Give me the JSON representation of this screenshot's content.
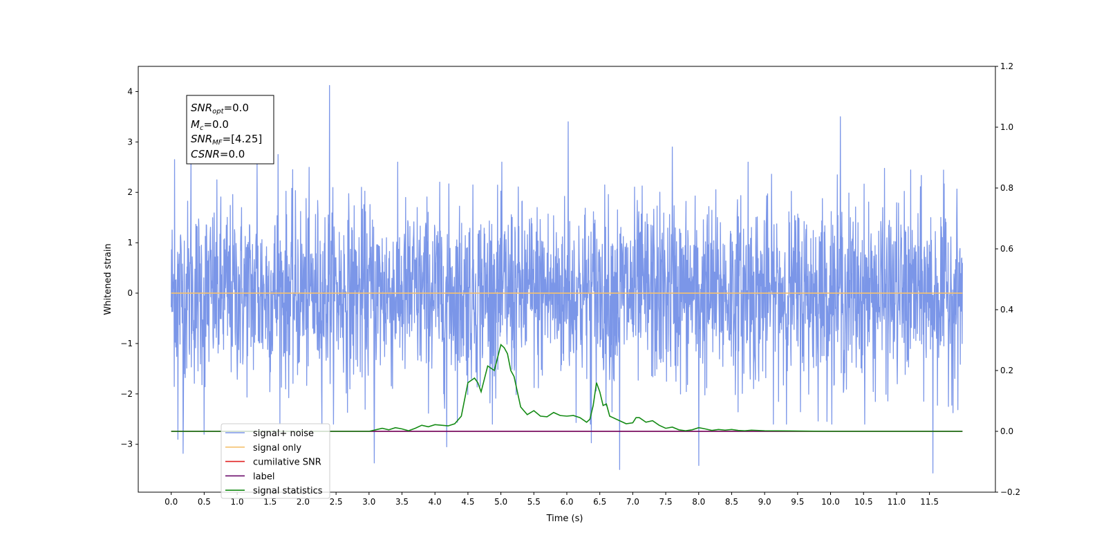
{
  "chart_data": {
    "type": "line",
    "title": "",
    "xlabel": "Time (s)",
    "ylabel_left": "Whitened strain",
    "ylabel_right": "",
    "xlim": [
      -0.5,
      12.5
    ],
    "ylim_left": [
      -3.95,
      4.5
    ],
    "ylim_right": [
      -0.2,
      1.2
    ],
    "x_ticks": [
      "0.0",
      "0.5",
      "1.0",
      "1.5",
      "2.0",
      "2.5",
      "3.0",
      "3.5",
      "4.0",
      "4.5",
      "5.0",
      "5.5",
      "6.0",
      "6.5",
      "7.0",
      "7.5",
      "8.0",
      "8.5",
      "9.0",
      "9.5",
      "10.0",
      "10.5",
      "11.0",
      "11.5"
    ],
    "y_ticks_left": [
      "4",
      "3",
      "2",
      "1",
      "0",
      "−1",
      "−2",
      "−3"
    ],
    "y_ticks_right": [
      "1.2",
      "1.0",
      "0.8",
      "0.6",
      "0.4",
      "0.2",
      "0.0",
      "−0.2"
    ],
    "grid": false,
    "legend_position": "lower-left",
    "info_box": {
      "line1": {
        "sym": "SNR",
        "sub": "opt",
        "rest": "=0.0"
      },
      "line2": {
        "sym": "M",
        "sub": "c",
        "rest": "=0.0"
      },
      "line3": {
        "sym": "SNR",
        "sub": "MF",
        "rest": "=[4.25]"
      },
      "line4": {
        "sym": "CSNR",
        "sub": "",
        "rest": "=0.0"
      }
    },
    "series": [
      {
        "name": "signal+ noise",
        "color": "#7b96e8",
        "axis": "left",
        "description_note": "dense white noise in whitened strain, amplitude roughly -2.5 to 2.5 with spikes up to 4.1 and down to -3.6",
        "x_range": [
          0.0,
          12.0
        ],
        "spikes": [
          [
            0.05,
            2.65
          ],
          [
            0.1,
            -2.9
          ],
          [
            0.18,
            -3.18
          ],
          [
            0.3,
            2.7
          ],
          [
            0.5,
            -2.8
          ],
          [
            1.3,
            2.6
          ],
          [
            1.62,
            2.75
          ],
          [
            2.4,
            4.12
          ],
          [
            3.08,
            -3.37
          ],
          [
            4.18,
            -3.05
          ],
          [
            6.02,
            3.4
          ],
          [
            6.37,
            -2.97
          ],
          [
            6.8,
            -3.5
          ],
          [
            7.6,
            2.9
          ],
          [
            8.0,
            -3.42
          ],
          [
            8.75,
            2.6
          ],
          [
            10.15,
            3.5
          ],
          [
            11.55,
            -3.57
          ]
        ]
      },
      {
        "name": "signal only",
        "color": "#f5c16e",
        "axis": "left",
        "x": [
          0.0,
          12.0
        ],
        "y": [
          0.0,
          0.0
        ]
      },
      {
        "name": "cumilative SNR",
        "color": "#e02020",
        "axis": "right",
        "x": [
          0.0,
          12.0
        ],
        "y": [
          0.0,
          0.0
        ]
      },
      {
        "name": "label",
        "color": "#6a0a6a",
        "axis": "right",
        "x": [
          0.0,
          12.0
        ],
        "y": [
          0.0,
          0.0
        ]
      },
      {
        "name": "signal statistics",
        "color": "#138a13",
        "axis": "right",
        "x": [
          0.0,
          3.0,
          3.1,
          3.2,
          3.3,
          3.4,
          3.5,
          3.6,
          3.7,
          3.8,
          3.9,
          4.0,
          4.1,
          4.2,
          4.3,
          4.4,
          4.5,
          4.6,
          4.65,
          4.7,
          4.8,
          4.9,
          5.0,
          5.05,
          5.1,
          5.15,
          5.2,
          5.3,
          5.4,
          5.5,
          5.6,
          5.7,
          5.8,
          5.9,
          6.0,
          6.1,
          6.2,
          6.3,
          6.35,
          6.4,
          6.45,
          6.5,
          6.55,
          6.6,
          6.65,
          6.7,
          6.8,
          6.9,
          7.0,
          7.05,
          7.1,
          7.2,
          7.3,
          7.4,
          7.5,
          7.6,
          7.7,
          7.8,
          7.9,
          8.0,
          8.1,
          8.2,
          8.3,
          8.4,
          8.5,
          8.6,
          8.7,
          8.8,
          9.0,
          9.5,
          10.0,
          11.0,
          12.0
        ],
        "y": [
          0.0,
          0.0,
          0.005,
          0.01,
          0.005,
          0.012,
          0.008,
          0.002,
          0.01,
          0.02,
          0.015,
          0.022,
          0.02,
          0.018,
          0.025,
          0.05,
          0.16,
          0.175,
          0.16,
          0.13,
          0.215,
          0.2,
          0.285,
          0.275,
          0.255,
          0.2,
          0.18,
          0.08,
          0.055,
          0.068,
          0.05,
          0.048,
          0.062,
          0.052,
          0.05,
          0.052,
          0.045,
          0.03,
          0.04,
          0.085,
          0.16,
          0.13,
          0.085,
          0.09,
          0.05,
          0.045,
          0.035,
          0.025,
          0.028,
          0.045,
          0.045,
          0.03,
          0.035,
          0.02,
          0.01,
          0.014,
          0.005,
          0.002,
          0.005,
          0.012,
          0.008,
          0.003,
          0.006,
          0.004,
          0.006,
          0.003,
          0.002,
          0.004,
          0.002,
          0.001,
          0.0,
          0.0,
          0.0
        ]
      }
    ]
  }
}
